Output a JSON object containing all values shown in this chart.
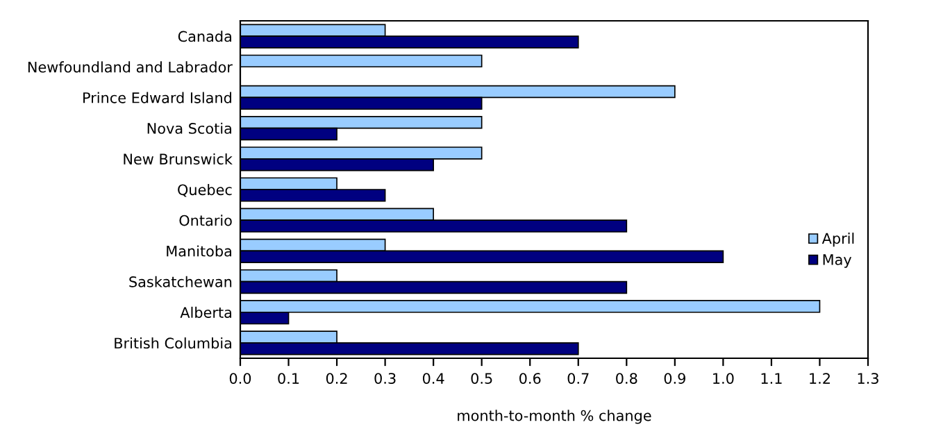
{
  "chart_data": {
    "type": "bar",
    "orientation": "horizontal",
    "xlabel": "month-to-month % change",
    "categories": [
      "Canada",
      "Newfoundland and Labrador",
      "Prince Edward Island",
      "Nova Scotia",
      "New Brunswick",
      "Quebec",
      "Ontario",
      "Manitoba",
      "Saskatchewan",
      "Alberta",
      "British Columbia"
    ],
    "series": [
      {
        "name": "April",
        "color": "#99ccff",
        "values": [
          0.3,
          0.5,
          0.9,
          0.5,
          0.5,
          0.2,
          0.4,
          0.3,
          0.2,
          1.2,
          0.2
        ]
      },
      {
        "name": "May",
        "color": "#000080",
        "values": [
          0.7,
          null,
          0.5,
          0.2,
          0.4,
          0.3,
          0.8,
          1.0,
          0.8,
          0.1,
          0.7
        ]
      }
    ],
    "xlim": [
      0,
      1.3
    ],
    "xticks": [
      {
        "value": 0,
        "label": "0.0"
      },
      0.1,
      0.2,
      0.3,
      0.4,
      0.5,
      0.6,
      0.7,
      0.8,
      0.9,
      {
        "value": 1,
        "label": "1.0"
      },
      1.1,
      1.2,
      1.3
    ],
    "grid": false,
    "legend": "right"
  }
}
